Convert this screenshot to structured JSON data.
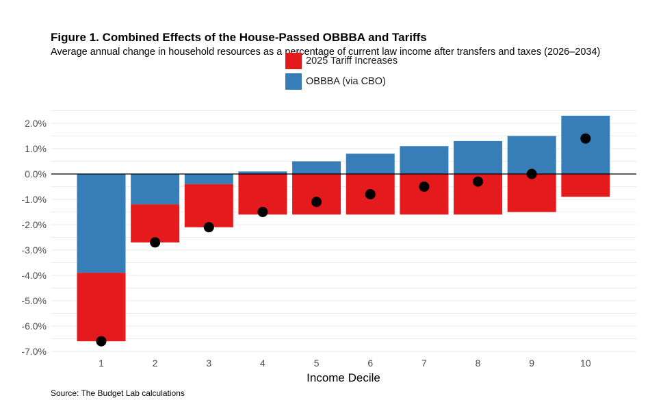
{
  "chart_data": {
    "type": "bar",
    "stacked": true,
    "title": "Figure 1. Combined Effects of the House-Passed OBBBA and Tariffs",
    "subtitle": "Average annual change in household resources as a percentage of current law income after transfers and taxes (2026–2034)",
    "xlabel": "Income Decile",
    "ylabel": "",
    "ylim": [
      -7.2,
      2.6
    ],
    "yticks": [
      2,
      1,
      0,
      -1,
      -2,
      -3,
      -4,
      -5,
      -6,
      -7
    ],
    "ytick_labels": [
      "2.0%",
      "1.0%",
      "0.0%",
      "-1.0%",
      "-2.0%",
      "-3.0%",
      "-4.0%",
      "-5.0%",
      "-6.0%",
      "-7.0%"
    ],
    "categories": [
      "1",
      "2",
      "3",
      "4",
      "5",
      "6",
      "7",
      "8",
      "9",
      "10"
    ],
    "series": [
      {
        "name": "OBBBA (via CBO)",
        "color": "#377eb8",
        "values": [
          -3.9,
          -1.2,
          -0.4,
          0.1,
          0.5,
          0.8,
          1.1,
          1.3,
          1.5,
          2.3
        ]
      },
      {
        "name": "2025 Tariff Increases",
        "color": "#e41a1c",
        "values": [
          -2.7,
          -1.5,
          -1.7,
          -1.6,
          -1.6,
          -1.6,
          -1.6,
          -1.6,
          -1.5,
          -0.9
        ]
      }
    ],
    "net_points": {
      "color": "#000000",
      "values": [
        -6.6,
        -2.7,
        -2.1,
        -1.5,
        -1.1,
        -0.8,
        -0.5,
        -0.3,
        0.0,
        1.4
      ]
    },
    "grid": true,
    "legend_position": "top"
  },
  "source": "Source: The Budget Lab calculations"
}
